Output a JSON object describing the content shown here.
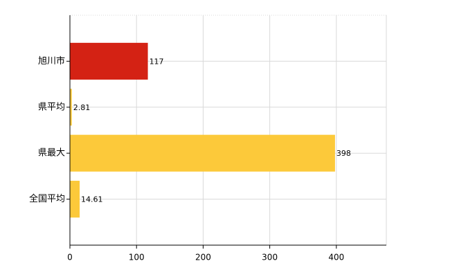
{
  "chart_data": {
    "type": "hbar",
    "categories": [
      "旭川市",
      "県平均",
      "県最大",
      "全国平均"
    ],
    "values": [
      117,
      2.81,
      398,
      14.61
    ],
    "colors": [
      "#d42214",
      "#fcc93a",
      "#fcc93a",
      "#fcc93a"
    ],
    "xlim": [
      0,
      475
    ],
    "xticks": [
      0,
      100,
      200,
      300,
      400
    ],
    "grid": true
  }
}
